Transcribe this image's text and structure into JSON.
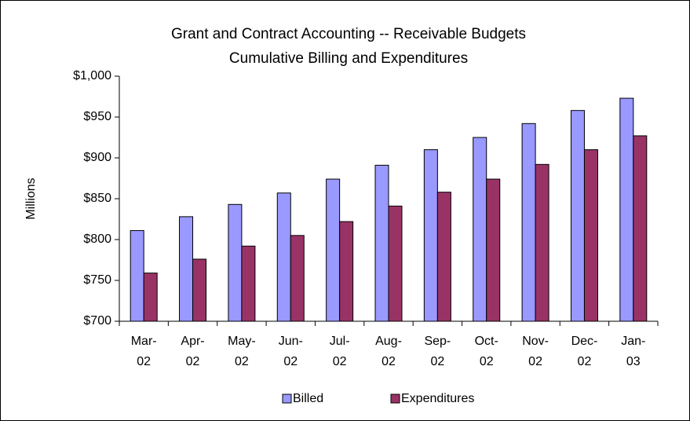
{
  "chart_data": {
    "type": "bar",
    "title": "Grant and Contract Accounting -- Receivable Budgets",
    "subtitle": "Cumulative Billing and Expenditures",
    "y_label": "Millions",
    "categories": [
      "Mar-02",
      "Apr-02",
      "May-02",
      "Jun-02",
      "Jul-02",
      "Aug-02",
      "Sep-02",
      "Oct-02",
      "Nov-02",
      "Dec-02",
      "Jan-03"
    ],
    "series": [
      {
        "name": "Billed",
        "color": "#9999ff",
        "values": [
          811,
          828,
          843,
          857,
          874,
          891,
          910,
          925,
          942,
          958,
          973
        ]
      },
      {
        "name": "Expenditures",
        "color": "#993366",
        "values": [
          759,
          776,
          792,
          805,
          822,
          841,
          858,
          874,
          892,
          910,
          927
        ]
      }
    ],
    "ylim": [
      700,
      1000
    ],
    "yticks": [
      {
        "value": 700,
        "label": "$700"
      },
      {
        "value": 750,
        "label": "$750"
      },
      {
        "value": 800,
        "label": "$800"
      },
      {
        "value": 850,
        "label": "$850"
      },
      {
        "value": 900,
        "label": "$900"
      },
      {
        "value": 950,
        "label": "$950"
      },
      {
        "value": 1000,
        "label": "$1,000"
      }
    ],
    "grid": false,
    "legend": "bottom"
  }
}
